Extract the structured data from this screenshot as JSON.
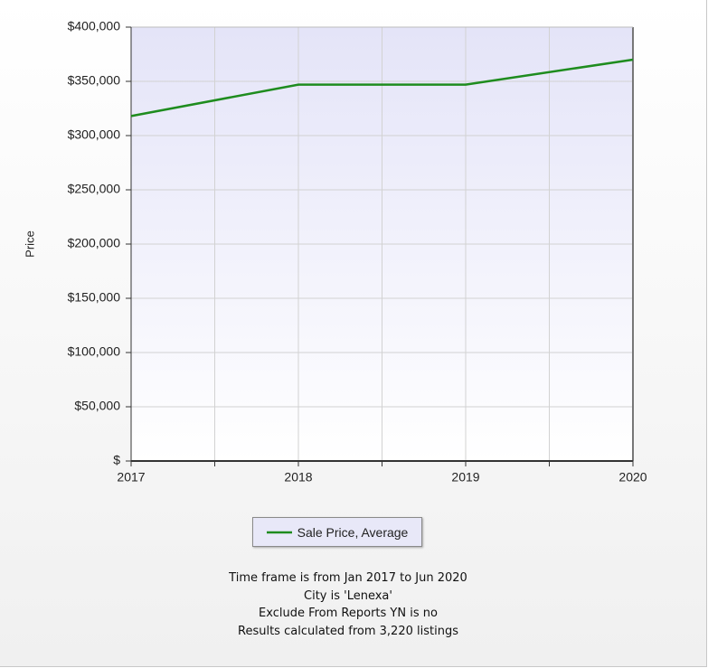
{
  "chart_data": {
    "type": "line",
    "y_label": "Price",
    "x": [
      2017,
      2018,
      2019,
      2020
    ],
    "series": [
      {
        "name": "Sale Price, Average",
        "color": "#1e8c1e",
        "values": [
          318000,
          347000,
          347000,
          370000
        ]
      }
    ],
    "xlim": [
      2017,
      2020
    ],
    "xticks": [
      2017,
      2018,
      2019,
      2020
    ],
    "ylim": [
      0,
      400000
    ],
    "yticks": [
      {
        "value": 0,
        "label": "$"
      },
      {
        "value": 50000,
        "label": "$50,000"
      },
      {
        "value": 100000,
        "label": "$100,000"
      },
      {
        "value": 150000,
        "label": "$150,000"
      },
      {
        "value": 200000,
        "label": "$200,000"
      },
      {
        "value": 250000,
        "label": "$250,000"
      },
      {
        "value": 300000,
        "label": "$300,000"
      },
      {
        "value": 350000,
        "label": "$350,000"
      },
      {
        "value": 400000,
        "label": "$400,000"
      }
    ],
    "grid": true,
    "legend": "bottom"
  },
  "notes": [
    "Time frame is from Jan 2017 to Jun 2020",
    "City is 'Lenexa'",
    "Exclude From Reports YN is no",
    "Results calculated from 3,220 listings"
  ]
}
